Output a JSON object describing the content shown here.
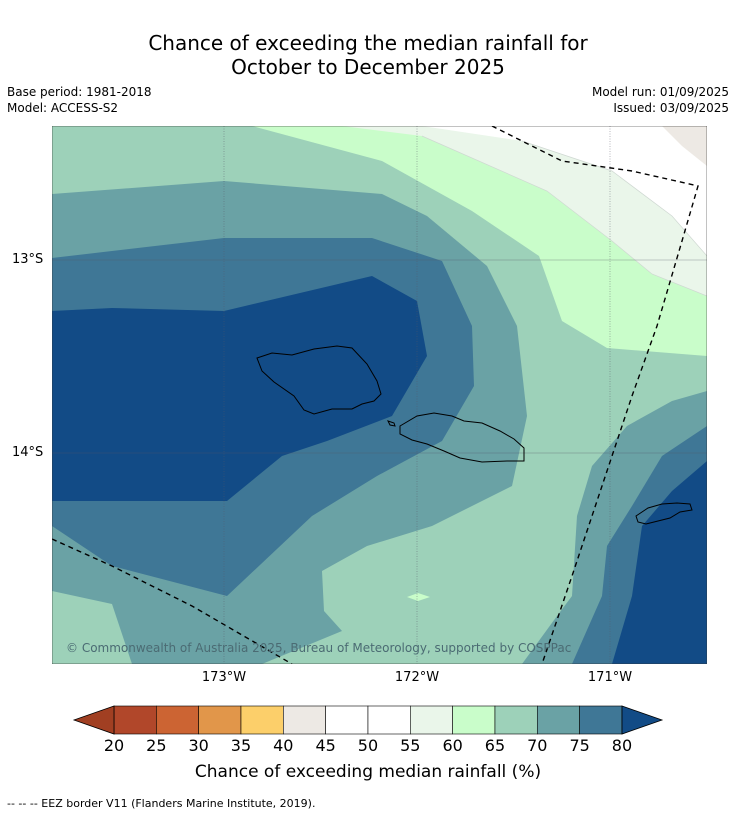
{
  "title_line1": "Chance of exceeding the median rainfall for",
  "title_line2": "October to December 2025",
  "meta_left": [
    "Base period: 1981-2018",
    "Model: ACCESS-S2"
  ],
  "meta_right": [
    "Model run: 01/09/2025",
    "Issued: 03/09/2025"
  ],
  "y_labels": [
    "13°S",
    "14°S"
  ],
  "x_labels": [
    "173°W",
    "172°W",
    "171°W"
  ],
  "copyright": "© Commonwealth of Australia 2025, Bureau of Meteorology, supported by COSPPac",
  "colorbar": {
    "ticks": [
      "20",
      "25",
      "30",
      "35",
      "40",
      "45",
      "50",
      "55",
      "60",
      "65",
      "70",
      "75",
      "80"
    ],
    "colors": [
      "#b1472a",
      "#cc6433",
      "#e1964a",
      "#fccf6a",
      "#ede9e4",
      "#ffffff",
      "#ffffff",
      "#eaf6ea",
      "#c9fdca",
      "#9dd1b9",
      "#6aa2a5",
      "#3f7796"
    ],
    "low_color": "#a13f22",
    "high_color": "#124b86",
    "label": "Chance of exceeding median rainfall (%)"
  },
  "map_colors": {
    "c80": "#124b86",
    "c75": "#3f7796",
    "c70": "#6aa2a5",
    "c65": "#9dd1b9",
    "c60": "#c9fdca",
    "c55": "#eaf6ea",
    "c50": "#ffffff",
    "c45": "#ede9e4"
  },
  "footnote": "--  --  -- EEZ border V11 (Flanders Marine Institute, 2019)."
}
